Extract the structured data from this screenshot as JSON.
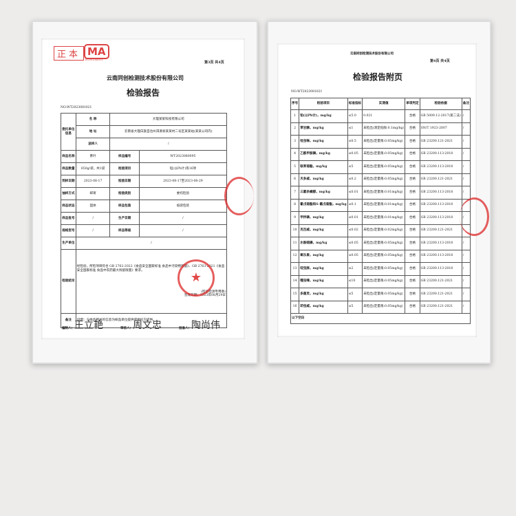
{
  "left": {
    "cert_mark": "正本",
    "cma_logo": "MA",
    "cma_number": "182301340201",
    "page": "第3页 共4页",
    "company": "云南同创检测技术股份有限公司",
    "title": "检验报告",
    "report_no": "NO:WT2023081021",
    "client_label": "委托单位信息",
    "rows": [
      [
        "名 称",
        "大理某某科技有限公司"
      ],
      [
        "地 址",
        "云南省大理白族自治州洱源县某某村二号区某某站(某某公司内)"
      ],
      [
        "送样人",
        "/"
      ]
    ],
    "pairs": [
      [
        "样品名称",
        "茶叶",
        "样品编号",
        "WT2023080095"
      ],
      [
        "样品数量",
        "650g/袋，共1袋",
        "检验项目",
        "铅(以Pb计)等16项"
      ],
      [
        "到样日期",
        "2023-08-17",
        "检验日期",
        "2023-08-17至2023-08-29"
      ],
      [
        "抽样方式",
        "邮寄",
        "检验类别",
        "委托检验"
      ],
      [
        "样品状态",
        "固体",
        "样品包装",
        "纸袋包装"
      ],
      [
        "样品批号",
        "/",
        "生产日期",
        "/"
      ],
      [
        "规格型号",
        "/",
        "样品等级",
        "/"
      ]
    ],
    "producer_label": "生产单位",
    "producer": "/",
    "conclusion_label": "检验结论",
    "conclusion": "经检验，所检项目符合 GB 2762-2022《食品安全国家标准 食品中污染物限量》、GB 2763-2021《食品安全国家标准 食品中农药最大残留限量》要求。",
    "stamp_note": "(检验检测专用章)",
    "issue_date": "签发日期：2023年08月29日",
    "remark_label": "备注",
    "remark": "说明：与样品相关的信息为样品单位提供或委托方提供。",
    "signers": [
      [
        "编制人：",
        "王立艳"
      ],
      [
        "审核人：",
        "周文忠"
      ],
      [
        "批准人：",
        "陶尚伟"
      ]
    ]
  },
  "right": {
    "company": "云南同创检测技术股份有限公司",
    "page": "第4页 共4页",
    "title": "检验报告附页",
    "report_no": "NO:WT2023081021",
    "headers": [
      "序号",
      "检验项目",
      "标准指标",
      "实测值",
      "单项判定",
      "检验依据",
      "备注"
    ],
    "rows": [
      [
        "1",
        "铅(以Pb计)，mg/kg",
        "≤5.0",
        "0.021",
        "合格",
        "GB 5009.12-2017(第二法)",
        "/"
      ],
      [
        "2",
        "草甘膦，mg/kg",
        "≤1",
        "未检出(测定低限:0.1mg/kg)",
        "合格",
        "SN/T 1923-2007",
        "/"
      ],
      [
        "3",
        "吡虫啉，mg/kg",
        "≤0.5",
        "未检出(定量限:0.05mg/kg)",
        "合格",
        "GB 23200.121-2021",
        "/"
      ],
      [
        "4",
        "乙酰甲胺磷，mg/kg",
        "≤0.05",
        "未检出(定量限:0.05mg/kg)",
        "合格",
        "GB 23200.113-2018",
        "/"
      ],
      [
        "5",
        "联苯菊酯，mg/kg",
        "≤5",
        "未检出(定量限:0.05mg/kg)",
        "合格",
        "GB 23200.113-2018",
        "/"
      ],
      [
        "6",
        "灭多威，mg/kg",
        "≤0.2",
        "未检出(定量限:0.05mg/kg)",
        "合格",
        "GB 23200.121-2021",
        "/"
      ],
      [
        "7",
        "三氯杀螨醇，mg/kg",
        "≤0.01",
        "未检出(定量限:0.01mg/kg)",
        "合格",
        "GB 23200.113-2018",
        "/"
      ],
      [
        "8",
        "氰戊菊酯和S-氰戊菊酯，mg/kg",
        "≤0.1",
        "未检出(定量限:0.01mg/kg)",
        "合格",
        "GB 23200.113-2018",
        "/"
      ],
      [
        "9",
        "甲拌磷，mg/kg",
        "≤0.01",
        "未检出(定量限:0.01mg/kg)",
        "合格",
        "GB 23200.113-2018",
        "/"
      ],
      [
        "10",
        "克百威，mg/kg",
        "≤0.02",
        "未检出(定量限:0.02mg/kg)",
        "合格",
        "GB 23200.121-2021",
        "/"
      ],
      [
        "11",
        "水胺硫磷，mg/kg",
        "≤0.05",
        "未检出(定量限:0.05mg/kg)",
        "合格",
        "GB 23200.113-2018",
        "/"
      ],
      [
        "12",
        "氧乐果，mg/kg",
        "≤0.05",
        "未检出(定量限:0.05mg/kg)",
        "合格",
        "GB 23200.113-2018",
        "/"
      ],
      [
        "13",
        "啶虫脒，mg/kg",
        "≤2",
        "未检出(定量限:0.05mg/kg)",
        "合格",
        "GB 23200.113-2018",
        "/"
      ],
      [
        "14",
        "噻虫嗪，mg/kg",
        "≤10",
        "未检出(定量限:0.05mg/kg)",
        "合格",
        "GB 23200.121-2021",
        "/"
      ],
      [
        "15",
        "多菌灵，mg/kg",
        "≤5",
        "未检出(定量限:0.05mg/kg)",
        "合格",
        "GB 23200.121-2021",
        "/"
      ],
      [
        "16",
        "茚虫威，mg/kg",
        "≤5",
        "未检出(定量限:0.05mg/kg)",
        "合格",
        "GB 23200.121-2021",
        "/"
      ]
    ],
    "footer": "以下空白"
  }
}
